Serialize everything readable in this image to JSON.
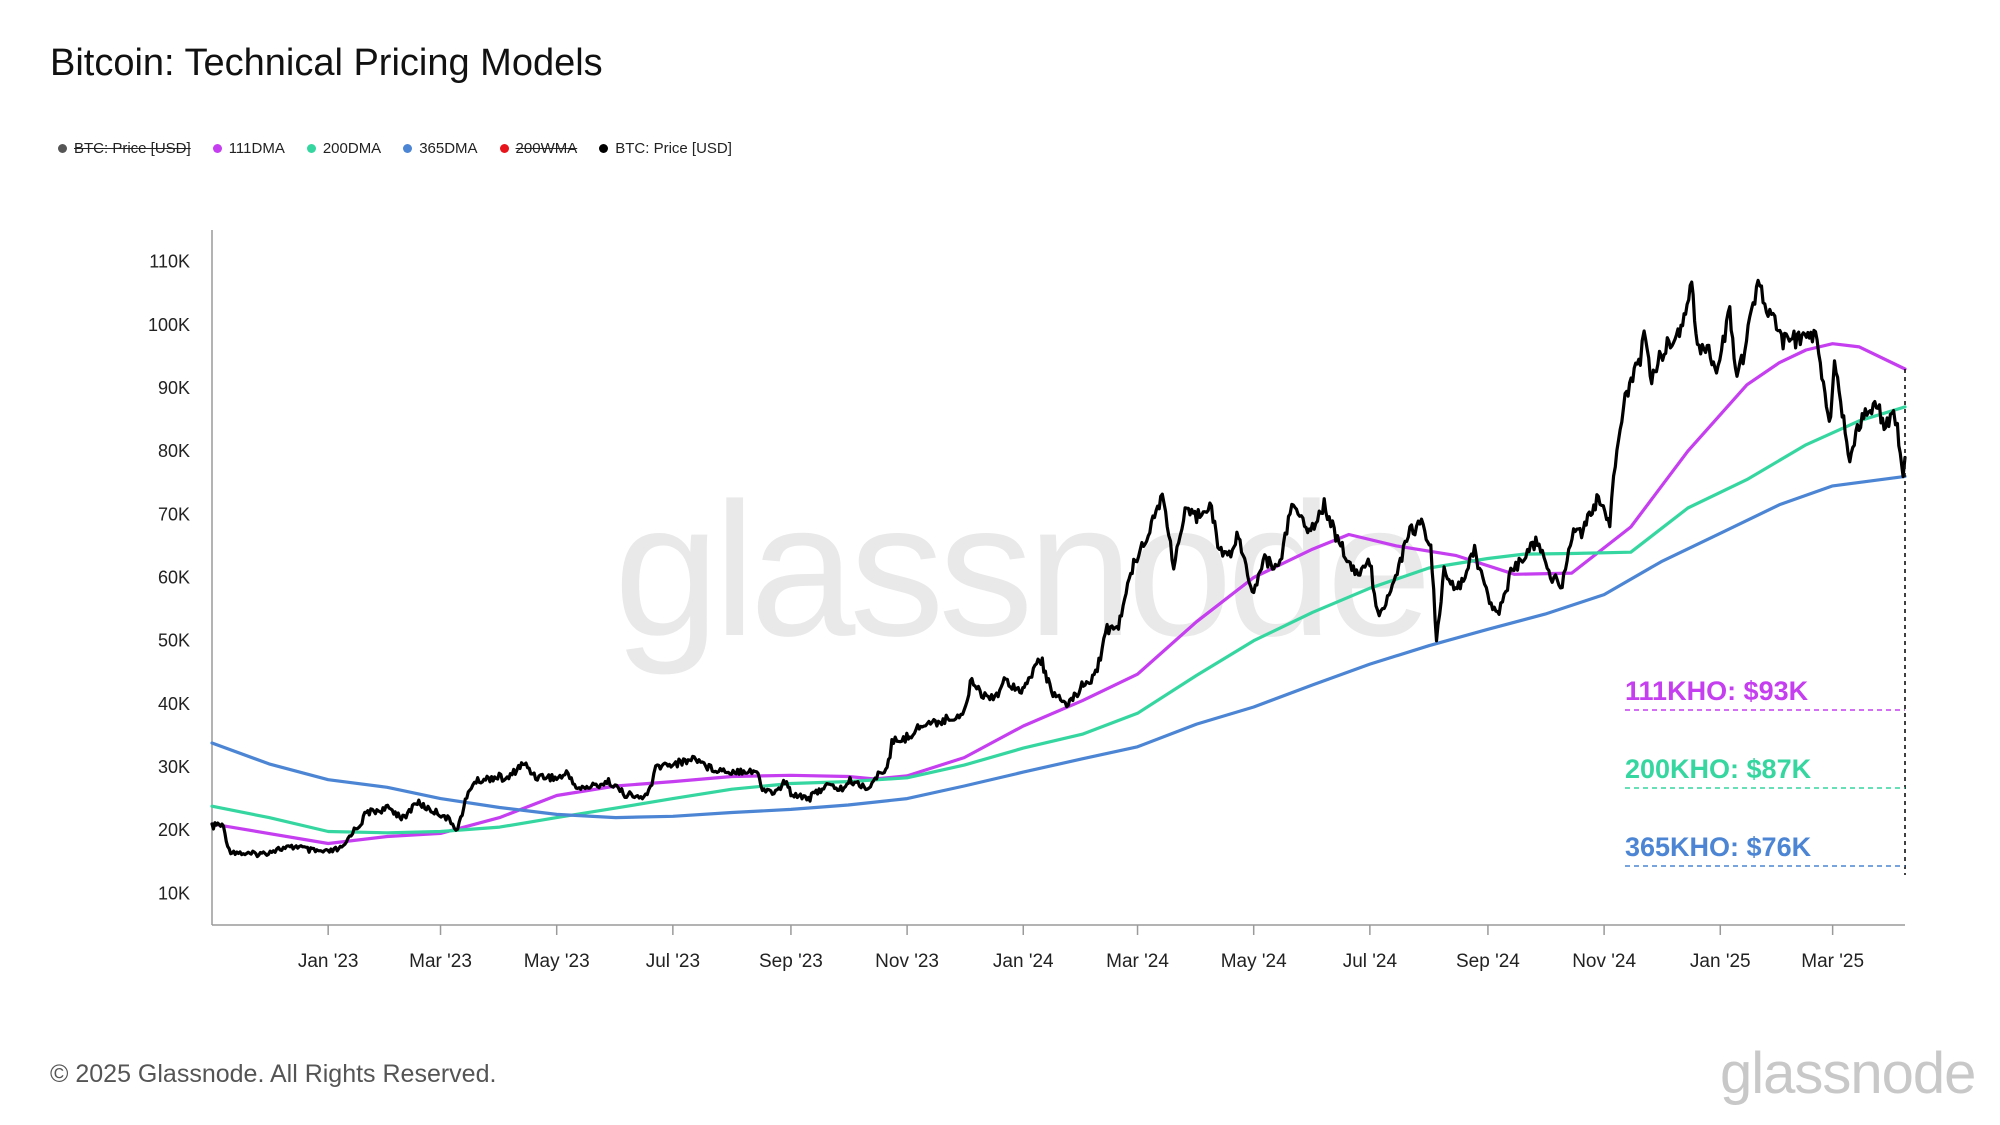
{
  "title": "Bitcoin: Technical Pricing Models",
  "legend": [
    {
      "label": "BTC: Price [USD]",
      "color": "#555555",
      "enabled": false
    },
    {
      "label": "111DMA",
      "color": "#c53ef0",
      "enabled": true
    },
    {
      "label": "200DMA",
      "color": "#35d6a0",
      "enabled": true
    },
    {
      "label": "365DMA",
      "color": "#4c85d4",
      "enabled": true
    },
    {
      "label": "200WMA",
      "color": "#e8141b",
      "enabled": false
    },
    {
      "label": "BTC: Price [USD]",
      "color": "#000000",
      "enabled": true
    }
  ],
  "chart_data": {
    "type": "line",
    "x_range": [
      "2022-11-01",
      "2025-04-08"
    ],
    "ylim": [
      5000,
      115000
    ],
    "y_ticks": [
      10000,
      20000,
      30000,
      40000,
      50000,
      60000,
      70000,
      80000,
      90000,
      100000,
      110000
    ],
    "y_tick_labels": [
      "10K",
      "20K",
      "30K",
      "40K",
      "50K",
      "60K",
      "70K",
      "80K",
      "90K",
      "100K",
      "110K"
    ],
    "x_tick_labels": [
      {
        "date": "2023-01-01",
        "label": "Jan '23"
      },
      {
        "date": "2023-03-01",
        "label": "Mar '23"
      },
      {
        "date": "2023-05-01",
        "label": "May '23"
      },
      {
        "date": "2023-07-01",
        "label": "Jul '23"
      },
      {
        "date": "2023-09-01",
        "label": "Sep '23"
      },
      {
        "date": "2023-11-01",
        "label": "Nov '23"
      },
      {
        "date": "2024-01-01",
        "label": "Jan '24"
      },
      {
        "date": "2024-03-01",
        "label": "Mar '24"
      },
      {
        "date": "2024-05-01",
        "label": "May '24"
      },
      {
        "date": "2024-07-01",
        "label": "Jul '24"
      },
      {
        "date": "2024-09-01",
        "label": "Sep '24"
      },
      {
        "date": "2024-11-01",
        "label": "Nov '24"
      },
      {
        "date": "2025-01-01",
        "label": "Jan '25"
      },
      {
        "date": "2025-03-01",
        "label": "Mar '25"
      }
    ],
    "grid": false,
    "watermark": "glassnode",
    "series": [
      {
        "name": "BTC: Price [USD]",
        "color": "#000000",
        "width": 3.2,
        "points": [
          [
            "2022-11-01",
            20500
          ],
          [
            "2022-11-04",
            21000
          ],
          [
            "2022-11-07",
            20500
          ],
          [
            "2022-11-10",
            16800
          ],
          [
            "2022-11-14",
            16500
          ],
          [
            "2022-11-20",
            16200
          ],
          [
            "2022-11-28",
            16300
          ],
          [
            "2022-12-05",
            17000
          ],
          [
            "2022-12-12",
            17200
          ],
          [
            "2022-12-16",
            17500
          ],
          [
            "2022-12-22",
            16800
          ],
          [
            "2022-12-31",
            16500
          ],
          [
            "2023-01-09",
            17200
          ],
          [
            "2023-01-13",
            19500
          ],
          [
            "2023-01-18",
            21000
          ],
          [
            "2023-01-21",
            22800
          ],
          [
            "2023-01-29",
            23200
          ],
          [
            "2023-02-02",
            23500
          ],
          [
            "2023-02-10",
            21800
          ],
          [
            "2023-02-16",
            24500
          ],
          [
            "2023-02-24",
            23200
          ],
          [
            "2023-03-03",
            22300
          ],
          [
            "2023-03-10",
            20200
          ],
          [
            "2023-03-14",
            24500
          ],
          [
            "2023-03-18",
            27500
          ],
          [
            "2023-03-23",
            28000
          ],
          [
            "2023-03-31",
            28500
          ],
          [
            "2023-04-05",
            28000
          ],
          [
            "2023-04-11",
            30000
          ],
          [
            "2023-04-14",
            30500
          ],
          [
            "2023-04-20",
            28500
          ],
          [
            "2023-04-26",
            28500
          ],
          [
            "2023-05-01",
            28200
          ],
          [
            "2023-05-07",
            29000
          ],
          [
            "2023-05-12",
            26500
          ],
          [
            "2023-05-20",
            27000
          ],
          [
            "2023-05-29",
            27700
          ],
          [
            "2023-06-05",
            25800
          ],
          [
            "2023-06-15",
            25000
          ],
          [
            "2023-06-20",
            27000
          ],
          [
            "2023-06-22",
            30000
          ],
          [
            "2023-06-30",
            30500
          ],
          [
            "2023-07-05",
            30700
          ],
          [
            "2023-07-13",
            31500
          ],
          [
            "2023-07-20",
            29900
          ],
          [
            "2023-07-31",
            29300
          ],
          [
            "2023-08-08",
            29500
          ],
          [
            "2023-08-14",
            29300
          ],
          [
            "2023-08-17",
            26500
          ],
          [
            "2023-08-24",
            26000
          ],
          [
            "2023-08-29",
            27700
          ],
          [
            "2023-09-01",
            25900
          ],
          [
            "2023-09-11",
            25100
          ],
          [
            "2023-09-19",
            27100
          ],
          [
            "2023-09-28",
            26500
          ],
          [
            "2023-10-02",
            27800
          ],
          [
            "2023-10-12",
            26700
          ],
          [
            "2023-10-16",
            28400
          ],
          [
            "2023-10-20",
            29700
          ],
          [
            "2023-10-23",
            31000
          ],
          [
            "2023-10-24",
            34000
          ],
          [
            "2023-10-31",
            34500
          ],
          [
            "2023-11-09",
            36700
          ],
          [
            "2023-11-15",
            37000
          ],
          [
            "2023-11-24",
            37700
          ],
          [
            "2023-12-01",
            38700
          ],
          [
            "2023-12-05",
            44000
          ],
          [
            "2023-12-11",
            41300
          ],
          [
            "2023-12-18",
            41400
          ],
          [
            "2023-12-22",
            43700
          ],
          [
            "2023-12-31",
            42300
          ],
          [
            "2024-01-03",
            42800
          ],
          [
            "2024-01-08",
            46800
          ],
          [
            "2024-01-11",
            46500
          ],
          [
            "2024-01-15",
            42500
          ],
          [
            "2024-01-23",
            39500
          ],
          [
            "2024-01-31",
            42500
          ],
          [
            "2024-02-08",
            44700
          ],
          [
            "2024-02-14",
            51800
          ],
          [
            "2024-02-20",
            52200
          ],
          [
            "2024-02-28",
            62500
          ],
          [
            "2024-03-05",
            66000
          ],
          [
            "2024-03-14",
            73100
          ],
          [
            "2024-03-20",
            62000
          ],
          [
            "2024-03-26",
            70000
          ],
          [
            "2024-04-01",
            69700
          ],
          [
            "2024-04-08",
            72000
          ],
          [
            "2024-04-13",
            64000
          ],
          [
            "2024-04-19",
            63800
          ],
          [
            "2024-04-23",
            66800
          ],
          [
            "2024-05-01",
            57200
          ],
          [
            "2024-05-06",
            63000
          ],
          [
            "2024-05-14",
            61500
          ],
          [
            "2024-05-21",
            71400
          ],
          [
            "2024-05-31",
            67500
          ],
          [
            "2024-06-07",
            71600
          ],
          [
            "2024-06-14",
            66000
          ],
          [
            "2024-06-24",
            60300
          ],
          [
            "2024-07-01",
            62700
          ],
          [
            "2024-07-05",
            54000
          ],
          [
            "2024-07-12",
            57700
          ],
          [
            "2024-07-22",
            67500
          ],
          [
            "2024-07-29",
            68300
          ],
          [
            "2024-08-02",
            65000
          ],
          [
            "2024-08-05",
            49500
          ],
          [
            "2024-08-09",
            60900
          ],
          [
            "2024-08-15",
            57500
          ],
          [
            "2024-08-25",
            64100
          ],
          [
            "2024-09-01",
            57300
          ],
          [
            "2024-09-06",
            53900
          ],
          [
            "2024-09-13",
            60500
          ],
          [
            "2024-09-20",
            63200
          ],
          [
            "2024-09-27",
            65800
          ],
          [
            "2024-10-03",
            60600
          ],
          [
            "2024-10-10",
            58700
          ],
          [
            "2024-10-16",
            67600
          ],
          [
            "2024-10-21",
            67300
          ],
          [
            "2024-10-29",
            72700
          ],
          [
            "2024-11-04",
            67800
          ],
          [
            "2024-11-06",
            75600
          ],
          [
            "2024-11-12",
            88700
          ],
          [
            "2024-11-20",
            94300
          ],
          [
            "2024-11-22",
            98900
          ],
          [
            "2024-11-26",
            91800
          ],
          [
            "2024-12-05",
            97700
          ],
          [
            "2024-12-09",
            97400
          ],
          [
            "2024-12-17",
            106100
          ],
          [
            "2024-12-20",
            97200
          ],
          [
            "2024-12-26",
            95800
          ],
          [
            "2024-12-30",
            92800
          ],
          [
            "2025-01-06",
            102100
          ],
          [
            "2025-01-09",
            92500
          ],
          [
            "2025-01-13",
            94500
          ],
          [
            "2025-01-20",
            106200
          ],
          [
            "2025-01-27",
            102100
          ],
          [
            "2025-02-03",
            97600
          ],
          [
            "2025-02-12",
            97600
          ],
          [
            "2025-02-20",
            98300
          ],
          [
            "2025-02-25",
            88800
          ],
          [
            "2025-02-28",
            84300
          ],
          [
            "2025-03-02",
            94200
          ],
          [
            "2025-03-10",
            78600
          ],
          [
            "2025-03-14",
            84000
          ],
          [
            "2025-03-24",
            87500
          ],
          [
            "2025-03-28",
            84500
          ],
          [
            "2025-04-02",
            85200
          ],
          [
            "2025-04-04",
            83800
          ],
          [
            "2025-04-07",
            76300
          ],
          [
            "2025-04-08",
            79000
          ]
        ]
      },
      {
        "name": "111DMA",
        "color": "#c53ef0",
        "width": 3.2,
        "points": [
          [
            "2022-11-01",
            21000
          ],
          [
            "2023-01-01",
            17900
          ],
          [
            "2023-02-01",
            19000
          ],
          [
            "2023-03-01",
            19500
          ],
          [
            "2023-04-01",
            22000
          ],
          [
            "2023-05-01",
            25500
          ],
          [
            "2023-06-01",
            27000
          ],
          [
            "2023-07-01",
            27700
          ],
          [
            "2023-08-01",
            28500
          ],
          [
            "2023-09-01",
            28700
          ],
          [
            "2023-10-01",
            28500
          ],
          [
            "2023-10-15",
            28100
          ],
          [
            "2023-11-01",
            28600
          ],
          [
            "2023-12-01",
            31500
          ],
          [
            "2024-01-01",
            36500
          ],
          [
            "2024-02-01",
            40500
          ],
          [
            "2024-03-01",
            44700
          ],
          [
            "2024-04-01",
            53000
          ],
          [
            "2024-05-01",
            60000
          ],
          [
            "2024-06-01",
            64500
          ],
          [
            "2024-06-20",
            66800
          ],
          [
            "2024-07-15",
            65000
          ],
          [
            "2024-08-15",
            63500
          ],
          [
            "2024-09-15",
            60500
          ],
          [
            "2024-10-15",
            60700
          ],
          [
            "2024-11-15",
            68000
          ],
          [
            "2024-12-15",
            80000
          ],
          [
            "2025-01-15",
            90500
          ],
          [
            "2025-02-01",
            94000
          ],
          [
            "2025-02-15",
            96000
          ],
          [
            "2025-03-01",
            97000
          ],
          [
            "2025-03-15",
            96500
          ],
          [
            "2025-04-08",
            93000
          ]
        ]
      },
      {
        "name": "200DMA",
        "color": "#35d6a0",
        "width": 3.2,
        "points": [
          [
            "2022-11-01",
            23800
          ],
          [
            "2022-12-01",
            22000
          ],
          [
            "2023-01-01",
            19800
          ],
          [
            "2023-02-01",
            19600
          ],
          [
            "2023-03-01",
            19800
          ],
          [
            "2023-04-01",
            20500
          ],
          [
            "2023-05-01",
            22000
          ],
          [
            "2023-06-01",
            23500
          ],
          [
            "2023-07-01",
            25000
          ],
          [
            "2023-08-01",
            26500
          ],
          [
            "2023-09-01",
            27400
          ],
          [
            "2023-10-01",
            27700
          ],
          [
            "2023-11-01",
            28300
          ],
          [
            "2023-12-01",
            30300
          ],
          [
            "2024-01-01",
            33000
          ],
          [
            "2024-02-01",
            35200
          ],
          [
            "2024-03-01",
            38500
          ],
          [
            "2024-04-01",
            44500
          ],
          [
            "2024-05-01",
            50000
          ],
          [
            "2024-06-01",
            54500
          ],
          [
            "2024-07-01",
            58300
          ],
          [
            "2024-08-01",
            61500
          ],
          [
            "2024-09-01",
            63000
          ],
          [
            "2024-09-20",
            63700
          ],
          [
            "2024-10-15",
            63800
          ],
          [
            "2024-11-15",
            64000
          ],
          [
            "2024-12-15",
            71000
          ],
          [
            "2025-01-15",
            75500
          ],
          [
            "2025-02-15",
            81000
          ],
          [
            "2025-03-15",
            84800
          ],
          [
            "2025-04-08",
            87000
          ]
        ]
      },
      {
        "name": "365DMA",
        "color": "#4c85d4",
        "width": 3.2,
        "points": [
          [
            "2022-11-01",
            33800
          ],
          [
            "2022-12-01",
            30500
          ],
          [
            "2023-01-01",
            28000
          ],
          [
            "2023-02-01",
            26800
          ],
          [
            "2023-03-01",
            25000
          ],
          [
            "2023-04-01",
            23600
          ],
          [
            "2023-05-01",
            22500
          ],
          [
            "2023-06-01",
            22000
          ],
          [
            "2023-07-01",
            22200
          ],
          [
            "2023-08-01",
            22800
          ],
          [
            "2023-09-01",
            23300
          ],
          [
            "2023-10-01",
            24000
          ],
          [
            "2023-11-01",
            25000
          ],
          [
            "2023-12-01",
            27000
          ],
          [
            "2024-01-01",
            29200
          ],
          [
            "2024-02-01",
            31300
          ],
          [
            "2024-03-01",
            33200
          ],
          [
            "2024-04-01",
            36800
          ],
          [
            "2024-05-01",
            39500
          ],
          [
            "2024-06-01",
            43000
          ],
          [
            "2024-07-01",
            46300
          ],
          [
            "2024-08-01",
            49200
          ],
          [
            "2024-09-01",
            51800
          ],
          [
            "2024-10-01",
            54200
          ],
          [
            "2024-11-01",
            57300
          ],
          [
            "2024-12-01",
            62500
          ],
          [
            "2025-01-01",
            67000
          ],
          [
            "2025-02-01",
            71500
          ],
          [
            "2025-03-01",
            74500
          ],
          [
            "2025-04-08",
            76000
          ]
        ]
      }
    ],
    "annotations": [
      {
        "label": "111KHO: $93K",
        "color": "#c53ef0",
        "value": 93000
      },
      {
        "label": "200KHO: $87K",
        "color": "#35d6a0",
        "value": 87000
      },
      {
        "label": "365KHO: $76K",
        "color": "#4c85d4",
        "value": 76000
      }
    ]
  },
  "copyright": "© 2025 Glassnode. All Rights Reserved.",
  "logo": "glassnode"
}
